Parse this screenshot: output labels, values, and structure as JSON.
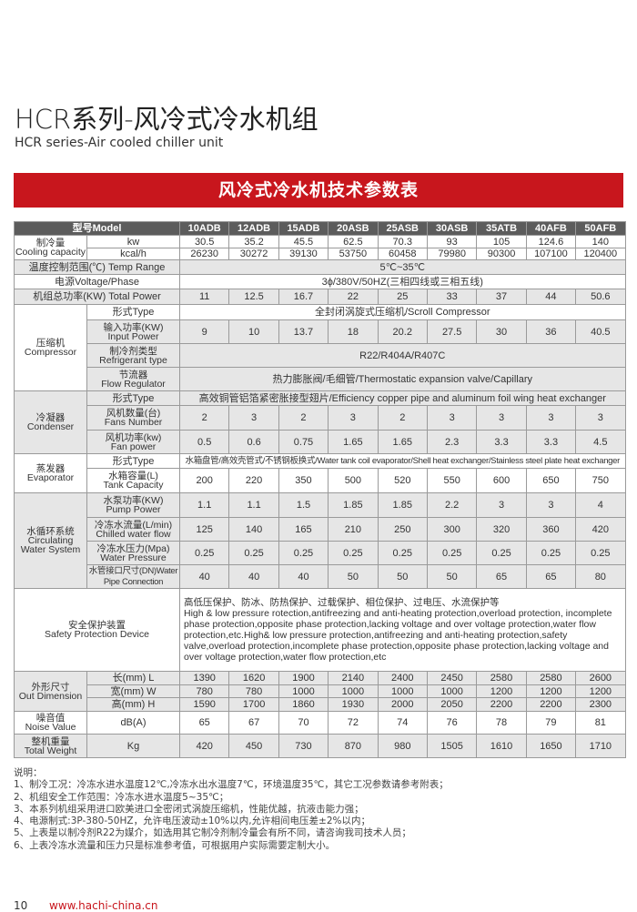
{
  "title": "HCR系列-风冷式冷水机组",
  "subtitle": "HCR series-Air cooled chiller unit",
  "banner": "风冷式冷水机技术参数表",
  "table": {
    "model_label": "型号Model",
    "models": [
      "10ADB",
      "12ADB",
      "15ADB",
      "20ASB",
      "25ASB",
      "30ASB",
      "35ATB",
      "40AFB",
      "50AFB"
    ],
    "cooling": {
      "label_cn": "制冷量",
      "label_en": "Cooling capacity",
      "kw_unit": "kw",
      "kw": [
        "30.5",
        "35.2",
        "45.5",
        "62.5",
        "70.3",
        "93",
        "105",
        "124.6",
        "140"
      ],
      "kcal_unit": "kcal/h",
      "kcal": [
        "26230",
        "30272",
        "39130",
        "53750",
        "60458",
        "79980",
        "90300",
        "107100",
        "120400"
      ]
    },
    "temp": {
      "label": "温度控制范围(℃) Temp Range",
      "value": "5℃~35℃"
    },
    "voltage": {
      "label": "电源Voltage/Phase",
      "value": "3ϕ/380V/50HZ(三相四线或三相五线)"
    },
    "total_power": {
      "label": "机组总功率(KW) Total Power",
      "values": [
        "11",
        "12.5",
        "16.7",
        "22",
        "25",
        "33",
        "37",
        "44",
        "50.6"
      ]
    },
    "compressor": {
      "label_cn": "压缩机",
      "label_en": "Compressor",
      "type_label": "形式Type",
      "type": "全封闭涡旋式压缩机/Scroll Compressor",
      "input_cn": "输入功率(KW)",
      "input_en": "Input Power",
      "input": [
        "9",
        "10",
        "13.7",
        "18",
        "20.2",
        "27.5",
        "30",
        "36",
        "40.5"
      ],
      "refrig_cn": "制冷剂类型",
      "refrig_en": "Refrigerant type",
      "refrig": "R22/R404A/R407C",
      "flow_cn": "节流器",
      "flow_en": "Flow Regulator",
      "flow": "热力膨胀阀/毛细管/Thermostatic expansion valve/Capillary"
    },
    "condenser": {
      "label_cn": "冷凝器",
      "label_en": "Condenser",
      "type_label": "形式Type",
      "type": "高效铜管铝箔紧密胀接型翅片/Efficiency copper pipe and aluminum foil wing heat exchanger",
      "fans_cn": "风机数量(台)",
      "fans_en": "Fans Number",
      "fans": [
        "2",
        "3",
        "2",
        "3",
        "2",
        "3",
        "3",
        "3",
        "3"
      ],
      "fanpower_cn": "风机功率(kw)",
      "fanpower_en": "Fan power",
      "fanpower": [
        "0.5",
        "0.6",
        "0.75",
        "1.65",
        "1.65",
        "2.3",
        "3.3",
        "3.3",
        "4.5"
      ]
    },
    "evaporator": {
      "label_cn": "蒸发器",
      "label_en": "Evaporator",
      "type_label": "形式Type",
      "type": "水箱盘管/高效壳管式/不锈钢板换式/Water tank coil evaporator/Shell heat exchanger/Stainless steel plate heat exchanger",
      "tank_cn": "水箱容量(L)",
      "tank_en": "Tank Capacity",
      "tank": [
        "200",
        "220",
        "350",
        "500",
        "520",
        "550",
        "600",
        "650",
        "750"
      ]
    },
    "water": {
      "label_cn": "水循环系统",
      "label_en1": "Circulating",
      "label_en2": "Water System",
      "pump_cn": "水泵功率(KW)",
      "pump_en": "Pump Power",
      "pump": [
        "1.1",
        "1.1",
        "1.5",
        "1.85",
        "1.85",
        "2.2",
        "3",
        "3",
        "4"
      ],
      "flow_cn": "冷冻水流量(L/min)",
      "flow_en": "Chilled water flow",
      "flow": [
        "125",
        "140",
        "165",
        "210",
        "250",
        "300",
        "320",
        "360",
        "420"
      ],
      "press_cn": "冷冻水压力(Mpa)",
      "press_en": "Water Pressure",
      "press": [
        "0.25",
        "0.25",
        "0.25",
        "0.25",
        "0.25",
        "0.25",
        "0.25",
        "0.25",
        "0.25"
      ],
      "pipe_cn": "水管接口尺寸(DN)",
      "pipe_en": "Water Pipe Connection",
      "pipe": [
        "40",
        "40",
        "40",
        "50",
        "50",
        "50",
        "65",
        "65",
        "80"
      ]
    },
    "safety": {
      "label_cn": "安全保护装置",
      "label_en": "Safety Protection Device",
      "text_cn": "高低压保护、防冰、防热保护、过载保护、相位保护、过电压、水流保护等",
      "text_en": "High & low pressure rotection,antifreezing and anti-heating protection,overload protection, incomplete phase protection,opposite phase protection,lacking voltage and over voltage protection,water flow protection,etc.High& low pressure protection,antifreezing and anti-heating protection,safety valve,overload protection,incomplete phase protection,opposite phase protection,lacking voltage and over voltage protection,water flow protection,etc"
    },
    "dimension": {
      "label_cn": "外形尺寸",
      "label_en": "Out Dimension",
      "l_label": "长(mm)  L",
      "l": [
        "1390",
        "1620",
        "1900",
        "2140",
        "2400",
        "2450",
        "2580",
        "2580",
        "2600"
      ],
      "w_label": "宽(mm) W",
      "w": [
        "780",
        "780",
        "1000",
        "1000",
        "1000",
        "1000",
        "1200",
        "1200",
        "1200"
      ],
      "h_label": "高(mm)  H",
      "h": [
        "1590",
        "1700",
        "1860",
        "1930",
        "2000",
        "2050",
        "2200",
        "2200",
        "2300"
      ]
    },
    "noise": {
      "label_cn": "噪音值",
      "label_en": "Noise Value",
      "unit": "dB(A)",
      "values": [
        "65",
        "67",
        "70",
        "72",
        "74",
        "76",
        "78",
        "79",
        "81"
      ]
    },
    "weight": {
      "label_cn": "整机重量",
      "label_en": "Total Weight",
      "unit": "Kg",
      "values": [
        "420",
        "450",
        "730",
        "870",
        "980",
        "1505",
        "1610",
        "1650",
        "1710"
      ]
    }
  },
  "notes": [
    "说明：",
    "1、制冷工况：冷冻水进水温度12℃,冷冻水出水温度7℃，环境温度35℃，其它工况参数请参考附表；",
    "2、机组安全工作范围：冷冻水进水温度5~35℃；",
    "3、本系列机组采用进口欧美进口全密闭式涡旋压缩机，性能优越，抗液击能力强；",
    "4、电源制式:3P-380-50HZ，允许电压波动±10%以内,允许相间电压差±2%以内；",
    "5、上表是以制冷剂R22为媒介，如选用其它制冷剂制冷量会有所不同，请咨询我司技术人员；",
    "6、上表冷冻水流量和压力只是标准参考值，可根据用户实际需要定制大小。"
  ],
  "footer": {
    "page": "10",
    "url": "www.hachi-china.cn"
  },
  "colors": {
    "brand_red": "#c8161d",
    "header_gray": "#5c5c5c",
    "row_gray": "#e6e6e6"
  }
}
